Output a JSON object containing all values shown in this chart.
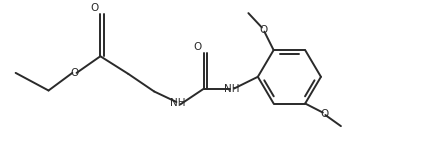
{
  "background_color": "#ffffff",
  "figsize": [
    4.22,
    1.47
  ],
  "dpi": 100,
  "line_width": 1.4,
  "line_color": "#2a2a2a",
  "text_color": "#2a2a2a",
  "font_size": 7.5,
  "xlim": [
    0,
    100
  ],
  "ylim": [
    0,
    100
  ]
}
